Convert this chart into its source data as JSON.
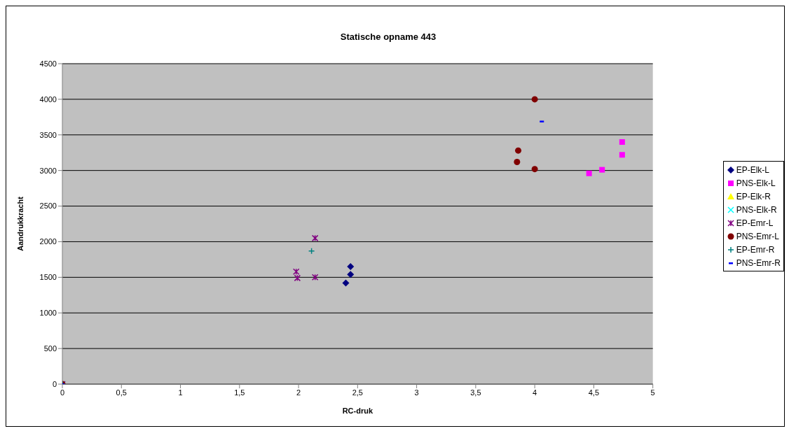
{
  "chart_data": {
    "type": "scatter",
    "title": "Statische opname 443",
    "xlabel": "RC-druk",
    "ylabel": "Aandrukkracht",
    "xlim": [
      0,
      5
    ],
    "xticks": [
      0,
      {
        "value": 0.5,
        "label": "0,5"
      },
      1,
      {
        "value": 1.5,
        "label": "1,5"
      },
      2,
      {
        "value": 2.5,
        "label": "2,5"
      },
      3,
      {
        "value": 3.5,
        "label": "3,5"
      },
      4,
      {
        "value": 4.5,
        "label": "4,5"
      },
      5
    ],
    "ylim": [
      0,
      4500
    ],
    "yticks": [
      0,
      500,
      1000,
      1500,
      2000,
      2500,
      3000,
      3500,
      4000,
      4500
    ],
    "grid": "y",
    "legend": "right",
    "series": [
      {
        "name": "EP-Elk-L",
        "color": "#000080",
        "marker": "diamond",
        "x": [
          2.44,
          2.44,
          2.4
        ],
        "values": [
          1650,
          1540,
          1420
        ]
      },
      {
        "name": "PNS-Elk-L",
        "color": "#ff00ff",
        "marker": "square",
        "x": [
          4.46,
          4.57,
          4.74,
          4.74
        ],
        "values": [
          2960,
          3010,
          3220,
          3400
        ]
      },
      {
        "name": "EP-Elk-R",
        "color": "#ffff00",
        "marker": "triangle"
      },
      {
        "name": "PNS-Elk-R",
        "color": "#00ffff",
        "marker": "x",
        "x": [
          0
        ],
        "values": [
          0
        ]
      },
      {
        "name": "EP-Emr-L",
        "color": "#800080",
        "marker": "cross",
        "x": [
          0,
          2.14,
          1.98,
          1.99,
          2.14
        ],
        "values": [
          0,
          2050,
          1580,
          1490,
          1500
        ]
      },
      {
        "name": "PNS-Emr-L",
        "color": "#800000",
        "marker": "circle",
        "x": [
          0,
          4.0,
          3.86,
          3.85,
          4.0
        ],
        "values": [
          0,
          4000,
          3280,
          3120,
          3020
        ]
      },
      {
        "name": "EP-Emr-R",
        "color": "#008080",
        "marker": "plus",
        "x": [
          0,
          2.11
        ],
        "values": [
          0,
          1870
        ]
      },
      {
        "name": "PNS-Emr-R",
        "color": "#0000ff",
        "x": [
          0,
          4.06
        ],
        "values": [
          0,
          3690
        ]
      }
    ]
  }
}
